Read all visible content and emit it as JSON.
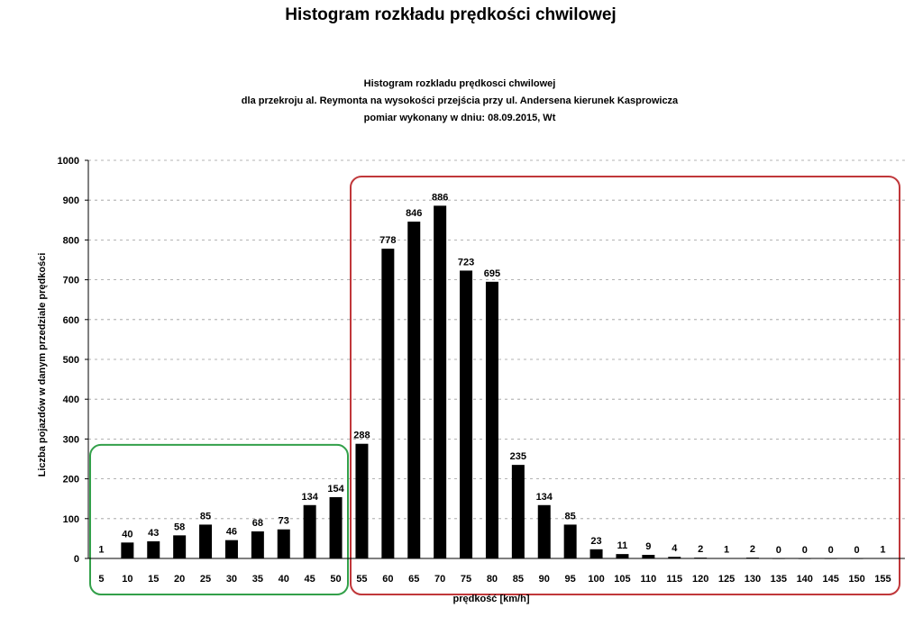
{
  "page": {
    "title": "Histogram rozkładu prędkości chwilowej"
  },
  "chart_data": {
    "type": "bar",
    "title": "Histogram rozkladu prędkosci chwilowej",
    "subtitle": [
      "dla przekroju al. Reymonta na wysokości przejścia przy ul. Andersena kierunek Kasprowicza",
      "pomiar wykonany w dniu: 08.09.2015, Wt"
    ],
    "xlabel": "prędkość [km/h]",
    "ylabel": "Liczba pojazdów w danym przedziale prędkości",
    "ylim": [
      0,
      1000
    ],
    "yticks": [
      0,
      100,
      200,
      300,
      400,
      500,
      600,
      700,
      800,
      900,
      1000
    ],
    "grid": true,
    "categories": [
      "5",
      "10",
      "15",
      "20",
      "25",
      "30",
      "35",
      "40",
      "45",
      "50",
      "55",
      "60",
      "65",
      "70",
      "75",
      "80",
      "85",
      "90",
      "95",
      "100",
      "105",
      "110",
      "115",
      "120",
      "125",
      "130",
      "135",
      "140",
      "145",
      "150",
      "155"
    ],
    "values": [
      1,
      40,
      43,
      58,
      85,
      46,
      68,
      73,
      134,
      154,
      288,
      778,
      846,
      886,
      723,
      695,
      235,
      134,
      85,
      23,
      11,
      9,
      4,
      2,
      1,
      2,
      0,
      0,
      0,
      0,
      1
    ],
    "bar_color": "#000000",
    "highlight_regions": [
      {
        "from": "5",
        "to": "50",
        "color": "#33a04a"
      },
      {
        "from": "55",
        "to": "155",
        "color": "#c0373a"
      }
    ]
  }
}
